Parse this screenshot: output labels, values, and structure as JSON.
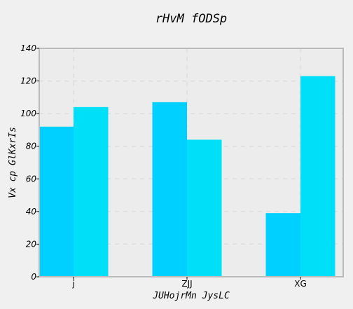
{
  "chart_data": {
    "type": "bar",
    "title": "rHvM  fODSp",
    "xlabel": "JUHojrMn JysLC",
    "ylabel": "Vx cp GlKxrIs",
    "categories": [
      "j",
      "ZJJ",
      "XG"
    ],
    "series": [
      {
        "values": [
          92,
          107,
          39
        ],
        "color": "#00d0ff"
      },
      {
        "values": [
          104,
          84,
          123
        ],
        "color": "#00dff8"
      }
    ],
    "ylim": [
      0,
      140
    ],
    "yticks": [
      0,
      20,
      40,
      60,
      80,
      100,
      120,
      140
    ],
    "grid": true
  },
  "colors": {
    "background": "#f0f0f0",
    "plot_background": "#ececec",
    "frame": "#bbbbbb",
    "grid": "#dddddd"
  }
}
